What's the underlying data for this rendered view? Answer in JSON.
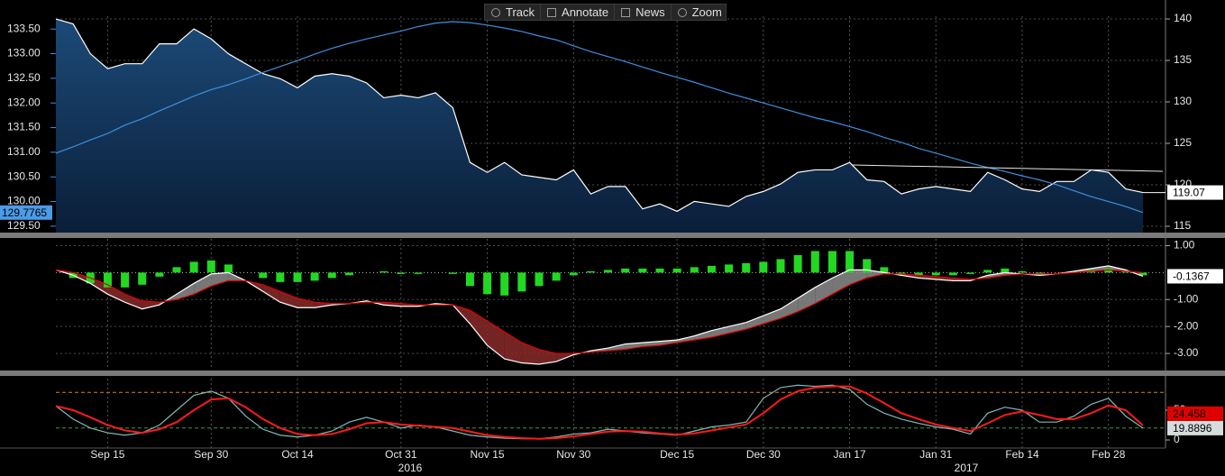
{
  "toolbar": [
    "Track",
    "Annotate",
    "News",
    "Zoom"
  ],
  "chart_data": [
    {
      "type": "line",
      "ylim": [
        129.37,
        133.76
      ],
      "yticks": [
        {
          "value": 129.5,
          "label": "129.50"
        },
        {
          "value": 130,
          "label": "130.00"
        },
        {
          "value": 130.5,
          "label": "130.50"
        },
        {
          "value": 131,
          "label": "131.00"
        },
        {
          "value": 131.5,
          "label": "131.50"
        },
        {
          "value": 132,
          "label": "132.00"
        },
        {
          "value": 132.5,
          "label": "132.50"
        },
        {
          "value": 133,
          "label": "133.00"
        },
        {
          "value": 133.5,
          "label": "133.50"
        }
      ],
      "y2lim": [
        114.24,
        140.33
      ],
      "y2ticks": [
        115,
        120,
        125,
        130,
        135,
        140
      ],
      "grid": "y2",
      "series": [
        {
          "type": "area",
          "axis": "y2",
          "color": "#ffffff",
          "fill_top": "#1c4a78",
          "fill_bottom": "#0a1e38",
          "tag": {
            "bg": "#ffffff",
            "fg": "#000000"
          },
          "tag_line": true,
          "values": [
            140.0,
            139.4,
            135.8,
            134.0,
            134.6,
            134.6,
            137.0,
            137.0,
            138.8,
            137.6,
            135.8,
            134.6,
            133.4,
            132.8,
            131.7,
            133.1,
            133.4,
            133.1,
            132.3,
            130.5,
            130.8,
            130.5,
            131.1,
            129.3,
            122.7,
            121.5,
            122.7,
            121.2,
            120.9,
            120.6,
            121.8,
            118.9,
            119.8,
            119.8,
            117.1,
            117.7,
            116.8,
            118.0,
            117.7,
            117.4,
            118.6,
            119.2,
            120.1,
            121.5,
            121.8,
            121.8,
            122.7,
            120.6,
            120.4,
            118.9,
            119.5,
            119.8,
            119.5,
            119.2,
            121.5,
            120.6,
            119.5,
            119.2,
            120.4,
            120.4,
            121.8,
            121.5,
            119.5,
            119.07
          ]
        },
        {
          "type": "line",
          "color": "#3d8fe0",
          "tag": {
            "bg": "#4a9be8",
            "fg": "#000000"
          },
          "values": [
            130.98,
            131.11,
            131.25,
            131.38,
            131.55,
            131.68,
            131.84,
            131.99,
            132.14,
            132.27,
            132.37,
            132.49,
            132.62,
            132.74,
            132.86,
            132.99,
            133.11,
            133.21,
            133.3,
            133.38,
            133.46,
            133.55,
            133.62,
            133.65,
            133.63,
            133.58,
            133.52,
            133.45,
            133.36,
            133.28,
            133.16,
            133.04,
            132.94,
            132.84,
            132.73,
            132.62,
            132.52,
            132.42,
            132.31,
            132.2,
            132.1,
            132.0,
            131.9,
            131.8,
            131.7,
            131.62,
            131.52,
            131.42,
            131.3,
            131.2,
            131.08,
            130.98,
            130.88,
            130.78,
            130.69,
            130.61,
            130.52,
            130.44,
            130.34,
            130.22,
            130.1,
            130.0,
            129.9,
            129.7765
          ]
        }
      ]
    },
    {
      "type": "line",
      "yaxis_side": "right",
      "ylim": [
        -3.6,
        1.25
      ],
      "yticks": [
        {
          "value": 1,
          "label": "1.00"
        },
        {
          "value": -1,
          "label": "-1.00"
        },
        {
          "value": -2,
          "label": "-2.00"
        },
        {
          "value": -3,
          "label": "-3.00"
        }
      ],
      "grid": "y",
      "zero_line": true,
      "fill_between": [
        0,
        1
      ],
      "fill_up": "#8c8c8c",
      "fill_down": "#8a2a2a",
      "series": [
        {
          "type": "line",
          "color": "#ffffff",
          "tag": {
            "bg": "#ffffff",
            "fg": "#000000"
          },
          "values": [
            0.1,
            -0.1,
            -0.4,
            -0.8,
            -1.1,
            -1.35,
            -1.2,
            -0.8,
            -0.4,
            -0.05,
            0.0,
            -0.3,
            -0.7,
            -1.1,
            -1.3,
            -1.3,
            -1.2,
            -1.15,
            -1.05,
            -1.2,
            -1.25,
            -1.25,
            -1.15,
            -1.2,
            -1.9,
            -2.7,
            -3.2,
            -3.35,
            -3.4,
            -3.3,
            -3.05,
            -2.9,
            -2.8,
            -2.65,
            -2.6,
            -2.55,
            -2.5,
            -2.35,
            -2.15,
            -2.0,
            -1.85,
            -1.6,
            -1.35,
            -0.95,
            -0.55,
            -0.2,
            0.1,
            0.1,
            0.0,
            -0.1,
            -0.2,
            -0.25,
            -0.3,
            -0.3,
            -0.1,
            0.0,
            -0.05,
            -0.1,
            -0.05,
            0.05,
            0.15,
            0.25,
            0.1,
            -0.1367
          ]
        },
        {
          "type": "line",
          "color": "#e00000",
          "values": [
            0.1,
            0.0,
            -0.2,
            -0.45,
            -0.8,
            -1.05,
            -1.1,
            -1.0,
            -0.8,
            -0.5,
            -0.3,
            -0.3,
            -0.45,
            -0.7,
            -0.95,
            -1.1,
            -1.15,
            -1.15,
            -1.1,
            -1.1,
            -1.15,
            -1.2,
            -1.2,
            -1.2,
            -1.4,
            -1.8,
            -2.2,
            -2.6,
            -2.85,
            -3.0,
            -3.0,
            -2.95,
            -2.9,
            -2.85,
            -2.75,
            -2.7,
            -2.6,
            -2.5,
            -2.4,
            -2.25,
            -2.1,
            -1.9,
            -1.7,
            -1.45,
            -1.15,
            -0.8,
            -0.45,
            -0.2,
            -0.05,
            -0.05,
            -0.1,
            -0.15,
            -0.2,
            -0.25,
            -0.2,
            -0.1,
            -0.05,
            -0.05,
            -0.05,
            0.0,
            0.05,
            0.1,
            0.05,
            0.0
          ]
        },
        {
          "type": "bar",
          "color": "#22d822",
          "values": [
            0.0,
            -0.2,
            -0.4,
            -0.55,
            -0.55,
            -0.45,
            -0.15,
            0.2,
            0.4,
            0.45,
            0.3,
            0.0,
            -0.2,
            -0.35,
            -0.35,
            -0.3,
            -0.2,
            -0.1,
            0.0,
            0.05,
            -0.05,
            -0.05,
            0.0,
            -0.05,
            -0.5,
            -0.8,
            -0.85,
            -0.7,
            -0.5,
            -0.3,
            -0.1,
            0.05,
            0.1,
            0.15,
            0.15,
            0.15,
            0.15,
            0.2,
            0.25,
            0.3,
            0.35,
            0.4,
            0.5,
            0.65,
            0.8,
            0.8,
            0.8,
            0.5,
            0.2,
            -0.05,
            -0.1,
            -0.1,
            -0.1,
            -0.05,
            0.1,
            0.15,
            0.05,
            -0.05,
            0.0,
            0.05,
            0.1,
            0.15,
            0.05,
            -0.1
          ]
        }
      ]
    },
    {
      "type": "line",
      "yaxis_side": "right",
      "ylim": [
        -13.6,
        103
      ],
      "yticks": [
        0,
        50
      ],
      "hlines": [
        {
          "value": 80,
          "color": "#d9822b"
        },
        {
          "value": 20,
          "color": "#3a9a3a"
        }
      ],
      "categories": [
        null,
        null,
        null,
        "Sep 15",
        null,
        null,
        null,
        null,
        null,
        "Sep 30",
        null,
        null,
        null,
        null,
        "Oct 14",
        null,
        null,
        null,
        null,
        null,
        "Oct 31",
        null,
        null,
        null,
        null,
        "Nov 15",
        null,
        null,
        null,
        null,
        "Nov 30",
        null,
        null,
        null,
        null,
        null,
        "Dec 15",
        null,
        null,
        null,
        null,
        "Dec 30",
        null,
        null,
        null,
        null,
        "Jan 17",
        null,
        null,
        null,
        null,
        "Jan 31",
        null,
        null,
        null,
        null,
        "Feb 14",
        null,
        null,
        null,
        null,
        "Feb 28",
        null,
        null
      ],
      "years": [
        "2016",
        "2017"
      ],
      "series": [
        {
          "type": "line",
          "color": "#7fb9b9",
          "tag": {
            "bg": "#d4dcdc",
            "fg": "#000000"
          },
          "values": [
            57,
            35,
            20,
            12,
            8,
            12,
            25,
            50,
            75,
            82,
            70,
            40,
            18,
            8,
            5,
            8,
            15,
            30,
            38,
            30,
            20,
            25,
            22,
            15,
            8,
            5,
            3,
            2,
            2,
            5,
            10,
            12,
            18,
            15,
            12,
            10,
            8,
            15,
            22,
            25,
            30,
            70,
            88,
            92,
            90,
            92,
            85,
            60,
            45,
            35,
            28,
            22,
            18,
            10,
            45,
            55,
            50,
            30,
            30,
            40,
            60,
            70,
            40,
            19.8896
          ]
        },
        {
          "type": "line",
          "color": "#ff1a1a",
          "width": 2,
          "tag": {
            "bg": "#e00000",
            "fg": "#000000"
          },
          "values": [
            57,
            50,
            38,
            25,
            16,
            12,
            18,
            30,
            50,
            68,
            70,
            55,
            35,
            20,
            10,
            8,
            10,
            18,
            28,
            30,
            26,
            24,
            22,
            20,
            14,
            8,
            5,
            3,
            2,
            3,
            6,
            10,
            14,
            15,
            14,
            11,
            9,
            11,
            16,
            21,
            26,
            45,
            68,
            82,
            88,
            90,
            90,
            78,
            62,
            45,
            35,
            26,
            20,
            15,
            28,
            42,
            48,
            42,
            35,
            35,
            45,
            58,
            50,
            24.458
          ]
        }
      ]
    }
  ]
}
